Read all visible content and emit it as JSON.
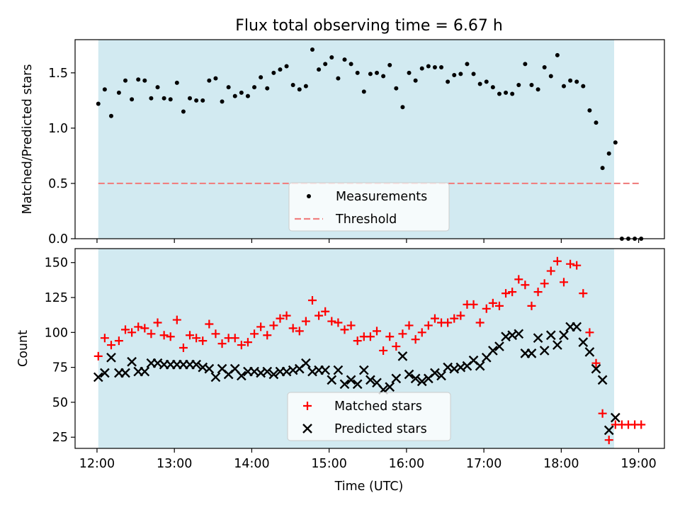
{
  "chart_data": [
    {
      "type": "scatter",
      "title": "Flux total observing time = 6.67 h",
      "xlabel": "",
      "ylabel": "Matched/Predicted stars",
      "xlim": [
        "11:43",
        "19:20"
      ],
      "ylim": [
        0,
        1.8
      ],
      "yticks": [
        "0.0",
        "0.5",
        "1.0",
        "1.5"
      ],
      "shaded_span": [
        "12:01",
        "18:41"
      ],
      "shade_color": "#add8e6",
      "grid": false,
      "legend_position": "lower center",
      "threshold": {
        "name": "Threshold",
        "value": 0.5,
        "x_range": [
          "12:01",
          "19:01"
        ],
        "color": "#f08080",
        "style": "dashed"
      },
      "series": [
        {
          "name": "Measurements",
          "marker": "dot",
          "color": "#000000",
          "points": [
            [
              "12:01",
              1.22
            ],
            [
              "12:06",
              1.35
            ],
            [
              "12:11",
              1.11
            ],
            [
              "12:17",
              1.32
            ],
            [
              "12:22",
              1.43
            ],
            [
              "12:27",
              1.26
            ],
            [
              "12:32",
              1.44
            ],
            [
              "12:37",
              1.43
            ],
            [
              "12:42",
              1.27
            ],
            [
              "12:47",
              1.37
            ],
            [
              "12:52",
              1.27
            ],
            [
              "12:57",
              1.26
            ],
            [
              "13:02",
              1.41
            ],
            [
              "13:07",
              1.15
            ],
            [
              "13:12",
              1.27
            ],
            [
              "13:17",
              1.25
            ],
            [
              "13:22",
              1.25
            ],
            [
              "13:27",
              1.43
            ],
            [
              "13:32",
              1.45
            ],
            [
              "13:37",
              1.24
            ],
            [
              "13:42",
              1.37
            ],
            [
              "13:47",
              1.29
            ],
            [
              "13:52",
              1.32
            ],
            [
              "13:57",
              1.29
            ],
            [
              "14:02",
              1.37
            ],
            [
              "14:07",
              1.46
            ],
            [
              "14:12",
              1.36
            ],
            [
              "14:17",
              1.5
            ],
            [
              "14:22",
              1.53
            ],
            [
              "14:27",
              1.56
            ],
            [
              "14:32",
              1.39
            ],
            [
              "14:37",
              1.35
            ],
            [
              "14:42",
              1.38
            ],
            [
              "14:47",
              1.71
            ],
            [
              "14:52",
              1.53
            ],
            [
              "14:57",
              1.58
            ],
            [
              "15:02",
              1.64
            ],
            [
              "15:07",
              1.45
            ],
            [
              "15:12",
              1.62
            ],
            [
              "15:17",
              1.58
            ],
            [
              "15:22",
              1.5
            ],
            [
              "15:27",
              1.33
            ],
            [
              "15:32",
              1.49
            ],
            [
              "15:37",
              1.5
            ],
            [
              "15:42",
              1.47
            ],
            [
              "15:47",
              1.57
            ],
            [
              "15:52",
              1.36
            ],
            [
              "15:57",
              1.19
            ],
            [
              "16:02",
              1.5
            ],
            [
              "16:07",
              1.43
            ],
            [
              "16:12",
              1.54
            ],
            [
              "16:17",
              1.56
            ],
            [
              "16:22",
              1.55
            ],
            [
              "16:27",
              1.55
            ],
            [
              "16:32",
              1.42
            ],
            [
              "16:37",
              1.48
            ],
            [
              "16:42",
              1.49
            ],
            [
              "16:47",
              1.58
            ],
            [
              "16:52",
              1.49
            ],
            [
              "16:57",
              1.4
            ],
            [
              "17:02",
              1.42
            ],
            [
              "17:07",
              1.37
            ],
            [
              "17:12",
              1.31
            ],
            [
              "17:17",
              1.32
            ],
            [
              "17:22",
              1.31
            ],
            [
              "17:27",
              1.39
            ],
            [
              "17:32",
              1.58
            ],
            [
              "17:37",
              1.39
            ],
            [
              "17:42",
              1.35
            ],
            [
              "17:47",
              1.55
            ],
            [
              "17:52",
              1.47
            ],
            [
              "17:57",
              1.66
            ],
            [
              "18:02",
              1.38
            ],
            [
              "18:07",
              1.43
            ],
            [
              "18:12",
              1.42
            ],
            [
              "18:17",
              1.38
            ],
            [
              "18:22",
              1.16
            ],
            [
              "18:27",
              1.05
            ],
            [
              "18:32",
              0.64
            ],
            [
              "18:37",
              0.77
            ],
            [
              "18:42",
              0.87
            ],
            [
              "18:47",
              0.0
            ],
            [
              "18:52",
              0.0
            ],
            [
              "18:57",
              0.0
            ],
            [
              "19:02",
              0.0
            ]
          ]
        }
      ]
    },
    {
      "type": "scatter",
      "title": "",
      "xlabel": "Time (UTC)",
      "ylabel": "Count",
      "xlim": [
        "11:43",
        "19:20"
      ],
      "ylim": [
        17,
        160
      ],
      "yticks": [
        "25",
        "50",
        "75",
        "100",
        "125",
        "150"
      ],
      "xticks": [
        "12:00",
        "13:00",
        "14:00",
        "15:00",
        "16:00",
        "17:00",
        "18:00",
        "19:00"
      ],
      "shaded_span": [
        "12:01",
        "18:41"
      ],
      "shade_color": "#add8e6",
      "grid": false,
      "legend_position": "lower center",
      "series": [
        {
          "name": "Matched stars",
          "marker": "plus",
          "color": "#ff0000",
          "points": [
            [
              "12:01",
              83
            ],
            [
              "12:06",
              96
            ],
            [
              "12:11",
              91
            ],
            [
              "12:17",
              94
            ],
            [
              "12:22",
              102
            ],
            [
              "12:27",
              100
            ],
            [
              "12:32",
              104
            ],
            [
              "12:37",
              103
            ],
            [
              "12:42",
              99
            ],
            [
              "12:47",
              107
            ],
            [
              "12:52",
              98
            ],
            [
              "12:57",
              97
            ],
            [
              "13:02",
              109
            ],
            [
              "13:07",
              89
            ],
            [
              "13:12",
              98
            ],
            [
              "13:17",
              96
            ],
            [
              "13:22",
              94
            ],
            [
              "13:27",
              106
            ],
            [
              "13:32",
              99
            ],
            [
              "13:37",
              92
            ],
            [
              "13:42",
              96
            ],
            [
              "13:47",
              96
            ],
            [
              "13:52",
              91
            ],
            [
              "13:57",
              93
            ],
            [
              "14:02",
              99
            ],
            [
              "14:07",
              104
            ],
            [
              "14:12",
              98
            ],
            [
              "14:17",
              105
            ],
            [
              "14:22",
              110
            ],
            [
              "14:27",
              112
            ],
            [
              "14:32",
              103
            ],
            [
              "14:37",
              101
            ],
            [
              "14:42",
              108
            ],
            [
              "14:47",
              123
            ],
            [
              "14:52",
              112
            ],
            [
              "14:57",
              115
            ],
            [
              "15:02",
              108
            ],
            [
              "15:07",
              107
            ],
            [
              "15:12",
              102
            ],
            [
              "15:17",
              105
            ],
            [
              "15:22",
              94
            ],
            [
              "15:27",
              97
            ],
            [
              "15:32",
              97
            ],
            [
              "15:37",
              101
            ],
            [
              "15:42",
              87
            ],
            [
              "15:47",
              97
            ],
            [
              "15:52",
              90
            ],
            [
              "15:57",
              99
            ],
            [
              "16:02",
              105
            ],
            [
              "16:07",
              95
            ],
            [
              "16:12",
              100
            ],
            [
              "16:17",
              105
            ],
            [
              "16:22",
              110
            ],
            [
              "16:27",
              107
            ],
            [
              "16:32",
              107
            ],
            [
              "16:37",
              110
            ],
            [
              "16:42",
              112
            ],
            [
              "16:47",
              120
            ],
            [
              "16:52",
              120
            ],
            [
              "16:57",
              107
            ],
            [
              "17:02",
              117
            ],
            [
              "17:07",
              121
            ],
            [
              "17:12",
              119
            ],
            [
              "17:17",
              128
            ],
            [
              "17:22",
              129
            ],
            [
              "17:27",
              138
            ],
            [
              "17:32",
              134
            ],
            [
              "17:37",
              119
            ],
            [
              "17:42",
              129
            ],
            [
              "17:47",
              135
            ],
            [
              "17:52",
              144
            ],
            [
              "17:57",
              151
            ],
            [
              "18:02",
              136
            ],
            [
              "18:07",
              149
            ],
            [
              "18:12",
              148
            ],
            [
              "18:17",
              128
            ],
            [
              "18:22",
              100
            ],
            [
              "18:27",
              78
            ],
            [
              "18:32",
              42
            ],
            [
              "18:37",
              23
            ],
            [
              "18:42",
              34
            ],
            [
              "18:47",
              34
            ],
            [
              "18:52",
              34
            ],
            [
              "18:57",
              34
            ],
            [
              "19:02",
              34
            ]
          ]
        },
        {
          "name": "Predicted stars",
          "marker": "x",
          "color": "#000000",
          "points": [
            [
              "12:01",
              68
            ],
            [
              "12:06",
              71
            ],
            [
              "12:11",
              82
            ],
            [
              "12:17",
              71
            ],
            [
              "12:22",
              71
            ],
            [
              "12:27",
              79
            ],
            [
              "12:32",
              72
            ],
            [
              "12:37",
              72
            ],
            [
              "12:42",
              78
            ],
            [
              "12:47",
              78
            ],
            [
              "12:52",
              77
            ],
            [
              "12:57",
              77
            ],
            [
              "13:02",
              77
            ],
            [
              "13:07",
              77
            ],
            [
              "13:12",
              77
            ],
            [
              "13:17",
              77
            ],
            [
              "13:22",
              75
            ],
            [
              "13:27",
              74
            ],
            [
              "13:32",
              68
            ],
            [
              "13:37",
              74
            ],
            [
              "13:42",
              70
            ],
            [
              "13:47",
              74
            ],
            [
              "13:52",
              69
            ],
            [
              "13:57",
              72
            ],
            [
              "14:02",
              72
            ],
            [
              "14:07",
              71
            ],
            [
              "14:12",
              72
            ],
            [
              "14:17",
              70
            ],
            [
              "14:22",
              72
            ],
            [
              "14:27",
              72
            ],
            [
              "14:32",
              73
            ],
            [
              "14:37",
              74
            ],
            [
              "14:42",
              78
            ],
            [
              "14:47",
              72
            ],
            [
              "14:52",
              73
            ],
            [
              "14:57",
              73
            ],
            [
              "15:02",
              66
            ],
            [
              "15:07",
              73
            ],
            [
              "15:12",
              63
            ],
            [
              "15:17",
              66
            ],
            [
              "15:22",
              63
            ],
            [
              "15:27",
              73
            ],
            [
              "15:32",
              66
            ],
            [
              "15:37",
              64
            ],
            [
              "15:42",
              59
            ],
            [
              "15:47",
              61
            ],
            [
              "15:52",
              67
            ],
            [
              "15:57",
              83
            ],
            [
              "16:02",
              70
            ],
            [
              "16:07",
              67
            ],
            [
              "16:12",
              65
            ],
            [
              "16:17",
              67
            ],
            [
              "16:22",
              71
            ],
            [
              "16:27",
              69
            ],
            [
              "16:32",
              75
            ],
            [
              "16:37",
              74
            ],
            [
              "16:42",
              75
            ],
            [
              "16:47",
              76
            ],
            [
              "16:52",
              80
            ],
            [
              "16:57",
              76
            ],
            [
              "17:02",
              82
            ],
            [
              "17:07",
              87
            ],
            [
              "17:12",
              90
            ],
            [
              "17:17",
              97
            ],
            [
              "17:22",
              98
            ],
            [
              "17:27",
              99
            ],
            [
              "17:32",
              85
            ],
            [
              "17:37",
              85
            ],
            [
              "17:42",
              96
            ],
            [
              "17:47",
              87
            ],
            [
              "17:52",
              98
            ],
            [
              "17:57",
              91
            ],
            [
              "18:02",
              98
            ],
            [
              "18:07",
              104
            ],
            [
              "18:12",
              104
            ],
            [
              "18:17",
              93
            ],
            [
              "18:22",
              86
            ],
            [
              "18:27",
              74
            ],
            [
              "18:32",
              66
            ],
            [
              "18:37",
              30
            ],
            [
              "18:42",
              39
            ]
          ]
        }
      ]
    }
  ]
}
